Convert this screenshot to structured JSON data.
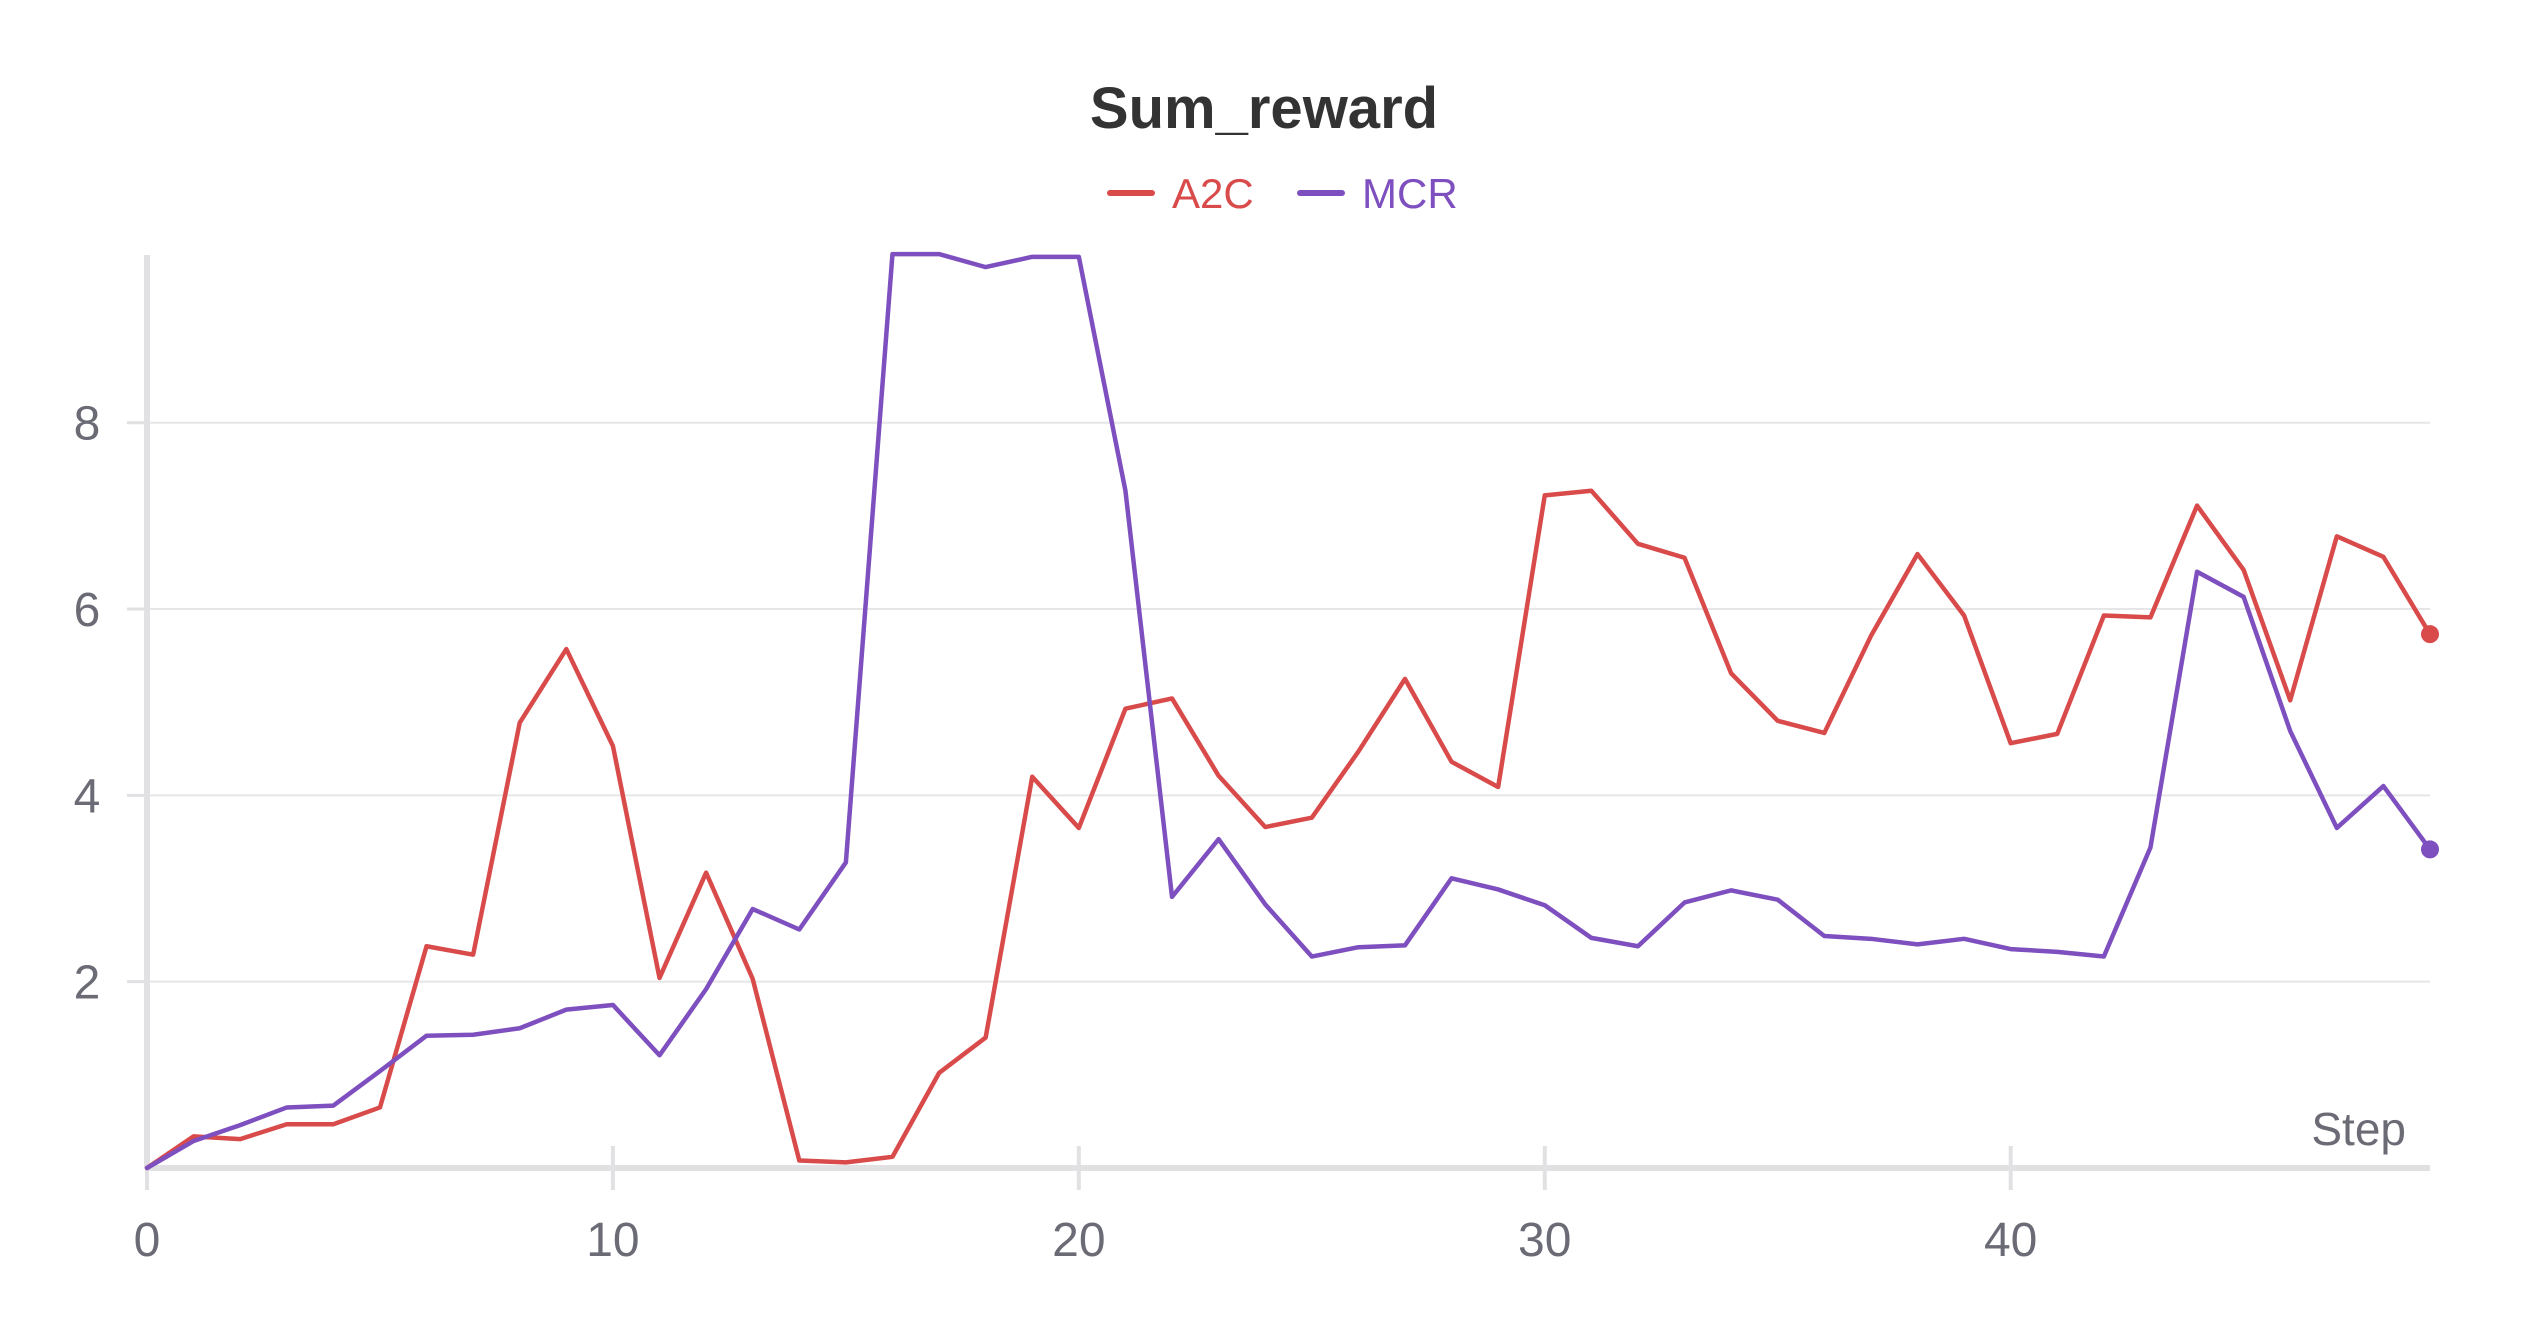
{
  "chart_data": {
    "type": "line",
    "title": "Sum_reward",
    "xlabel": "Step",
    "ylabel": "",
    "xlim": [
      0,
      49
    ],
    "ylim": [
      0,
      9.8
    ],
    "x_ticks": [
      0,
      10,
      20,
      30,
      40
    ],
    "y_ticks": [
      2,
      4,
      6,
      8
    ],
    "grid": true,
    "legend": "top-center",
    "series": [
      {
        "name": "A2C",
        "color": "#d94b4b",
        "x": [
          0,
          1,
          2,
          3,
          4,
          5,
          6,
          7,
          8,
          9,
          10,
          11,
          12,
          13,
          14,
          15,
          16,
          17,
          18,
          19,
          20,
          21,
          22,
          23,
          24,
          25,
          26,
          27,
          28,
          29,
          30,
          31,
          32,
          33,
          34,
          35,
          36,
          37,
          38,
          39,
          40,
          41,
          42,
          43,
          44,
          45,
          46,
          47,
          48,
          49
        ],
        "values": [
          0.0,
          0.34,
          0.31,
          0.47,
          0.47,
          0.65,
          2.38,
          2.29,
          4.78,
          5.57,
          4.53,
          2.04,
          3.17,
          2.03,
          0.08,
          0.06,
          0.12,
          1.02,
          1.4,
          4.2,
          3.65,
          4.93,
          5.04,
          4.21,
          3.66,
          3.76,
          4.47,
          5.25,
          4.36,
          4.09,
          7.22,
          7.27,
          6.7,
          6.55,
          5.31,
          4.8,
          4.67,
          5.71,
          6.59,
          5.93,
          4.56,
          4.66,
          5.93,
          5.91,
          7.11,
          6.42,
          5.02,
          6.78,
          6.56,
          5.73
        ]
      },
      {
        "name": "MCR",
        "color": "#7e4fbf",
        "x": [
          0,
          1,
          2,
          3,
          4,
          5,
          6,
          7,
          8,
          9,
          10,
          11,
          12,
          13,
          14,
          15,
          16,
          17,
          18,
          19,
          20,
          21,
          22,
          23,
          24,
          25,
          26,
          27,
          28,
          29,
          30,
          31,
          32,
          33,
          34,
          35,
          36,
          37,
          38,
          39,
          40,
          41,
          42,
          43,
          44,
          45,
          46,
          47,
          48,
          49
        ],
        "values": [
          0.0,
          0.29,
          0.46,
          0.65,
          0.67,
          1.04,
          1.42,
          1.43,
          1.5,
          1.7,
          1.75,
          1.21,
          1.92,
          2.78,
          2.56,
          3.28,
          9.81,
          9.81,
          9.67,
          9.78,
          9.78,
          7.27,
          2.91,
          3.53,
          2.83,
          2.27,
          2.37,
          2.39,
          3.11,
          2.99,
          2.82,
          2.47,
          2.38,
          2.85,
          2.98,
          2.88,
          2.49,
          2.46,
          2.4,
          2.46,
          2.35,
          2.32,
          2.27,
          3.44,
          6.4,
          6.13,
          4.69,
          3.65,
          4.1,
          3.42
        ]
      }
    ]
  }
}
